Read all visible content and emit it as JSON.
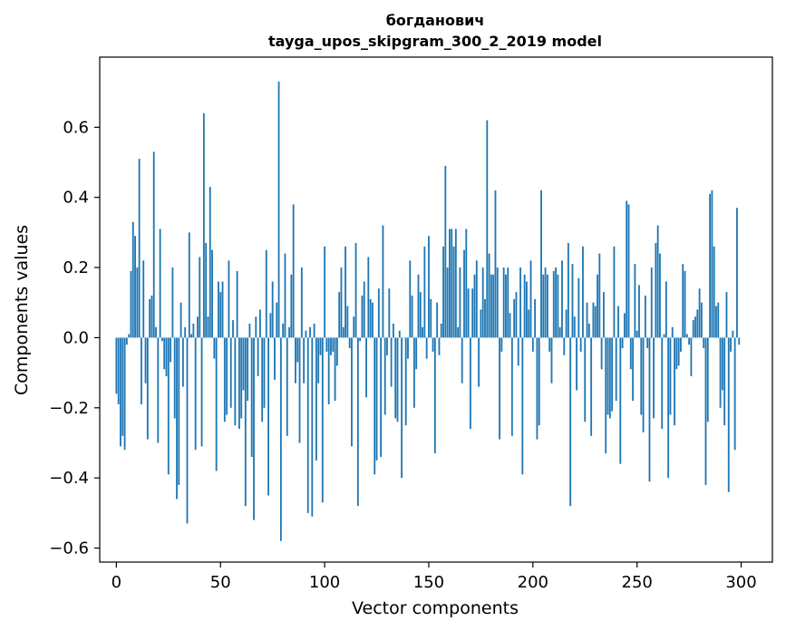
{
  "chart_data": {
    "type": "bar",
    "title": "богданович",
    "subtitle": "tayga_upos_skipgram_300_2_2019 model",
    "xlabel": "Vector components",
    "ylabel": "Components values",
    "xlim": [
      -8,
      315
    ],
    "ylim": [
      -0.64,
      0.8
    ],
    "xticks": [
      0,
      50,
      100,
      150,
      200,
      250,
      300
    ],
    "yticks": [
      -0.6,
      -0.4,
      -0.2,
      0.0,
      0.2,
      0.4,
      0.6
    ],
    "xtick_labels": [
      "0",
      "50",
      "100",
      "150",
      "200",
      "250",
      "300"
    ],
    "ytick_labels": [
      "−0.6",
      "−0.4",
      "−0.2",
      "0.0",
      "0.2",
      "0.4",
      "0.6"
    ],
    "grid": false,
    "bar_color": "#1f77b4",
    "values": [
      -0.16,
      -0.19,
      -0.31,
      -0.28,
      -0.32,
      -0.02,
      0.01,
      0.19,
      0.33,
      0.29,
      0.2,
      0.51,
      -0.19,
      0.22,
      -0.13,
      -0.29,
      0.11,
      0.12,
      0.53,
      0.03,
      -0.3,
      0.31,
      -0.01,
      -0.09,
      -0.11,
      -0.39,
      -0.07,
      0.2,
      -0.23,
      -0.46,
      -0.42,
      0.1,
      -0.14,
      0.03,
      -0.53,
      0.3,
      0.01,
      0.04,
      -0.32,
      0.06,
      0.23,
      -0.31,
      0.64,
      0.27,
      0.06,
      0.43,
      0.25,
      -0.06,
      -0.38,
      0.16,
      0.13,
      0.16,
      -0.24,
      -0.22,
      0.22,
      -0.2,
      0.05,
      -0.25,
      0.19,
      -0.26,
      -0.23,
      -0.15,
      -0.48,
      -0.18,
      0.04,
      -0.34,
      -0.52,
      0.06,
      -0.11,
      0.08,
      -0.24,
      -0.2,
      0.25,
      -0.45,
      0.07,
      0.16,
      -0.12,
      0.1,
      0.73,
      -0.58,
      0.04,
      0.24,
      -0.28,
      0.03,
      0.18,
      0.38,
      -0.13,
      -0.07,
      -0.3,
      0.2,
      -0.13,
      0.02,
      -0.5,
      0.03,
      -0.51,
      0.04,
      -0.35,
      -0.13,
      -0.05,
      -0.47,
      0.26,
      -0.04,
      -0.19,
      -0.05,
      -0.04,
      -0.18,
      -0.08,
      0.13,
      0.2,
      0.03,
      0.26,
      0.09,
      -0.03,
      -0.31,
      0.06,
      0.27,
      -0.48,
      -0.01,
      0.12,
      0.16,
      -0.17,
      0.23,
      0.11,
      0.1,
      -0.39,
      -0.35,
      0.14,
      -0.34,
      0.32,
      -0.22,
      -0.05,
      0.14,
      -0.14,
      0.04,
      -0.23,
      -0.24,
      0.02,
      -0.4,
      0.0,
      -0.25,
      -0.06,
      0.22,
      0.12,
      -0.2,
      -0.09,
      0.18,
      0.13,
      0.03,
      0.26,
      -0.06,
      0.29,
      0.11,
      -0.04,
      -0.33,
      0.1,
      -0.05,
      0.04,
      0.26,
      0.49,
      0.2,
      0.31,
      0.31,
      0.26,
      0.31,
      0.03,
      0.2,
      -0.13,
      0.25,
      0.31,
      0.14,
      -0.26,
      0.14,
      0.18,
      0.22,
      -0.14,
      0.08,
      0.2,
      0.11,
      0.62,
      0.24,
      0.18,
      0.18,
      0.42,
      0.2,
      -0.29,
      -0.04,
      0.2,
      0.18,
      0.2,
      0.07,
      -0.28,
      0.11,
      0.13,
      -0.08,
      0.2,
      -0.39,
      0.18,
      0.16,
      0.08,
      0.22,
      -0.04,
      0.11,
      -0.29,
      -0.25,
      0.42,
      0.18,
      0.2,
      0.18,
      -0.04,
      -0.13,
      0.19,
      0.2,
      0.18,
      0.03,
      0.22,
      -0.05,
      0.08,
      0.27,
      -0.48,
      0.21,
      0.06,
      -0.15,
      0.17,
      -0.04,
      0.26,
      -0.24,
      0.1,
      0.04,
      -0.28,
      0.1,
      0.09,
      0.18,
      0.24,
      -0.09,
      0.13,
      -0.33,
      -0.22,
      -0.23,
      -0.21,
      0.26,
      -0.18,
      0.09,
      -0.36,
      -0.03,
      0.07,
      0.39,
      0.38,
      -0.09,
      -0.18,
      0.21,
      0.02,
      0.15,
      -0.22,
      -0.27,
      0.12,
      -0.03,
      -0.41,
      0.2,
      -0.23,
      0.27,
      0.32,
      0.24,
      -0.26,
      0.01,
      0.16,
      -0.4,
      -0.22,
      0.03,
      -0.25,
      -0.09,
      -0.08,
      -0.04,
      0.21,
      0.19,
      0.01,
      -0.02,
      -0.11,
      0.05,
      0.06,
      0.08,
      0.14,
      0.1,
      -0.03,
      -0.42,
      -0.24,
      0.41,
      0.42,
      0.26,
      0.09,
      0.1,
      -0.2,
      -0.15,
      -0.25,
      0.13,
      -0.44,
      -0.04,
      0.02,
      -0.32,
      0.37,
      -0.02
    ]
  }
}
